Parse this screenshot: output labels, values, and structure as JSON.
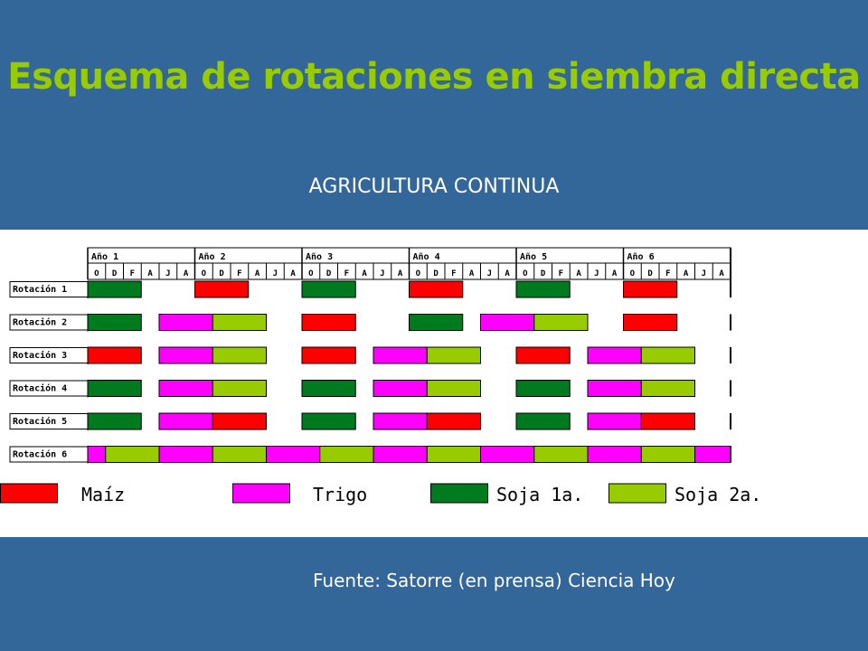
{
  "header": {
    "title": "Esquema de rotaciones en siembra directa",
    "subtitle": "AGRICULTURA CONTINUA"
  },
  "footer": {
    "source": "Fuente: Satorre (en prensa) Ciencia Hoy"
  },
  "scheme": {
    "years": [
      "Año 1",
      "Año 2",
      "Año 3",
      "Año 4",
      "Año 5",
      "Año 6"
    ],
    "months_per_year": [
      "O",
      "D",
      "F",
      "A",
      "J",
      "A"
    ],
    "crops": {
      "maiz": {
        "name": "Maíz",
        "color": "#ff0000"
      },
      "trigo": {
        "name": "Trigo",
        "color": "#ff00ff"
      },
      "soja1": {
        "name": "Soja 1a.",
        "color": "#007a1f"
      },
      "soja2": {
        "name": "Soja 2a.",
        "color": "#99cc00"
      }
    },
    "rotations": [
      {
        "label": "Rotación 1",
        "segments": [
          [
            "soja1",
            0,
            3
          ],
          [
            "maiz",
            6,
            9
          ],
          [
            "soja1",
            12,
            15
          ],
          [
            "maiz",
            18,
            21
          ],
          [
            "soja1",
            24,
            27
          ],
          [
            "maiz",
            30,
            33
          ]
        ]
      },
      {
        "label": "Rotación 2",
        "segments": [
          [
            "soja1",
            0,
            3
          ],
          [
            "trigo",
            4,
            7
          ],
          [
            "soja2",
            7,
            10
          ],
          [
            "maiz",
            12,
            15
          ],
          [
            "soja1",
            18,
            21
          ],
          [
            "trigo",
            22,
            25
          ],
          [
            "soja2",
            25,
            28
          ],
          [
            "maiz",
            30,
            33
          ]
        ]
      },
      {
        "label": "Rotación 3",
        "segments": [
          [
            "maiz",
            0,
            3
          ],
          [
            "trigo",
            4,
            7
          ],
          [
            "soja2",
            7,
            10
          ],
          [
            "maiz",
            12,
            15
          ],
          [
            "trigo",
            16,
            19
          ],
          [
            "soja2",
            19,
            22
          ],
          [
            "maiz",
            24,
            27
          ],
          [
            "trigo",
            28,
            31
          ],
          [
            "soja2",
            31,
            34
          ]
        ]
      },
      {
        "label": "Rotación 4",
        "segments": [
          [
            "soja1",
            0,
            3
          ],
          [
            "trigo",
            4,
            7
          ],
          [
            "soja2",
            7,
            10
          ],
          [
            "soja1",
            12,
            15
          ],
          [
            "trigo",
            16,
            19
          ],
          [
            "soja2",
            19,
            22
          ],
          [
            "soja1",
            24,
            27
          ],
          [
            "trigo",
            28,
            31
          ],
          [
            "soja2",
            31,
            34
          ]
        ]
      },
      {
        "label": "Rotación 5",
        "segments": [
          [
            "soja1",
            0,
            3
          ],
          [
            "trigo",
            4,
            7
          ],
          [
            "maiz",
            7,
            10
          ],
          [
            "soja1",
            12,
            15
          ],
          [
            "trigo",
            16,
            19
          ],
          [
            "maiz",
            19,
            22
          ],
          [
            "soja1",
            24,
            27
          ],
          [
            "trigo",
            28,
            31
          ],
          [
            "maiz",
            31,
            34
          ]
        ]
      },
      {
        "label": "Rotación 6",
        "segments": [
          [
            "trigo",
            -0.2,
            1
          ],
          [
            "soja2",
            1,
            4
          ],
          [
            "trigo",
            4,
            7
          ],
          [
            "soja2",
            7,
            10
          ],
          [
            "trigo",
            10,
            13
          ],
          [
            "soja2",
            13,
            16
          ],
          [
            "trigo",
            16,
            19
          ],
          [
            "soja2",
            19,
            22
          ],
          [
            "trigo",
            22,
            25
          ],
          [
            "soja2",
            25,
            28
          ],
          [
            "trigo",
            28,
            31
          ],
          [
            "soja2",
            31,
            34
          ],
          [
            "trigo",
            34,
            36
          ]
        ]
      }
    ]
  }
}
